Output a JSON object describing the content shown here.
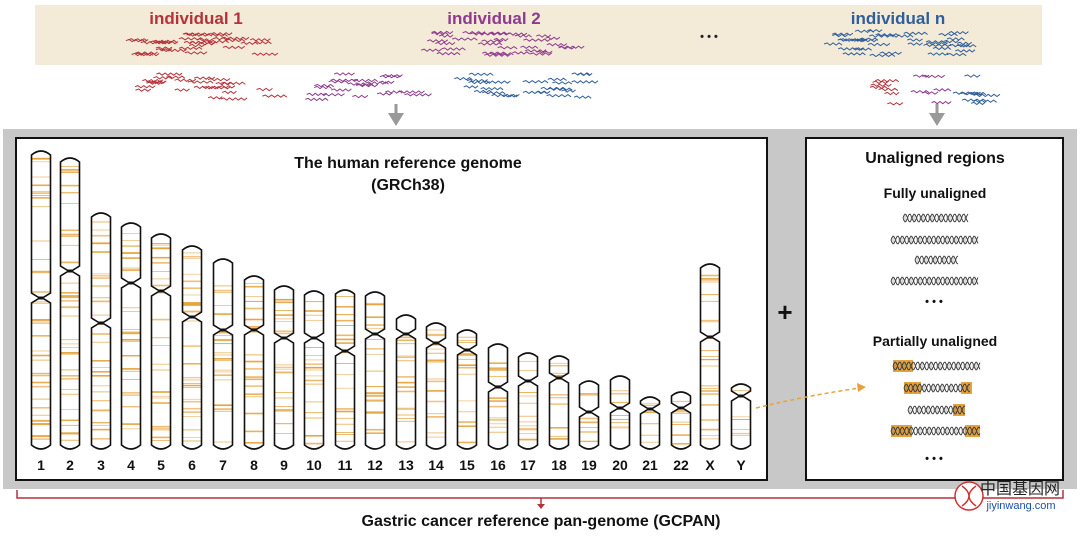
{
  "colors": {
    "individual_1": "#b5323a",
    "individual_2": "#8e3a8e",
    "individual_n": "#2f5f9a",
    "band": "#e6a23c",
    "panel_bg": "#f4ead8",
    "frame": "#c8c8c8",
    "outline": "#111111",
    "bracket": "#b5323a"
  },
  "individuals": [
    {
      "label": "individual 1",
      "color_key": "individual_1"
    },
    {
      "label": "individual 2",
      "color_key": "individual_2"
    },
    {
      "label": "individual n",
      "color_key": "individual_n"
    }
  ],
  "ellipsis": "• • •",
  "genome_panel": {
    "title": "The human reference genome",
    "subtitle": "(GRCh38)"
  },
  "chromosomes": [
    "1",
    "2",
    "3",
    "4",
    "5",
    "6",
    "7",
    "8",
    "9",
    "10",
    "11",
    "12",
    "13",
    "14",
    "15",
    "16",
    "17",
    "18",
    "19",
    "20",
    "21",
    "22",
    "X",
    "Y"
  ],
  "plus_sign": "+",
  "unaligned_panel": {
    "title": "Unaligned regions",
    "fully_label": "Fully unaligned",
    "partially_label": "Partially unaligned",
    "dots": "• • •"
  },
  "footer": {
    "label": "Gastric cancer reference pan-genome (GCPAN)"
  },
  "watermark": {
    "cn": "中国基因网",
    "url": "jiyinwang.com"
  }
}
